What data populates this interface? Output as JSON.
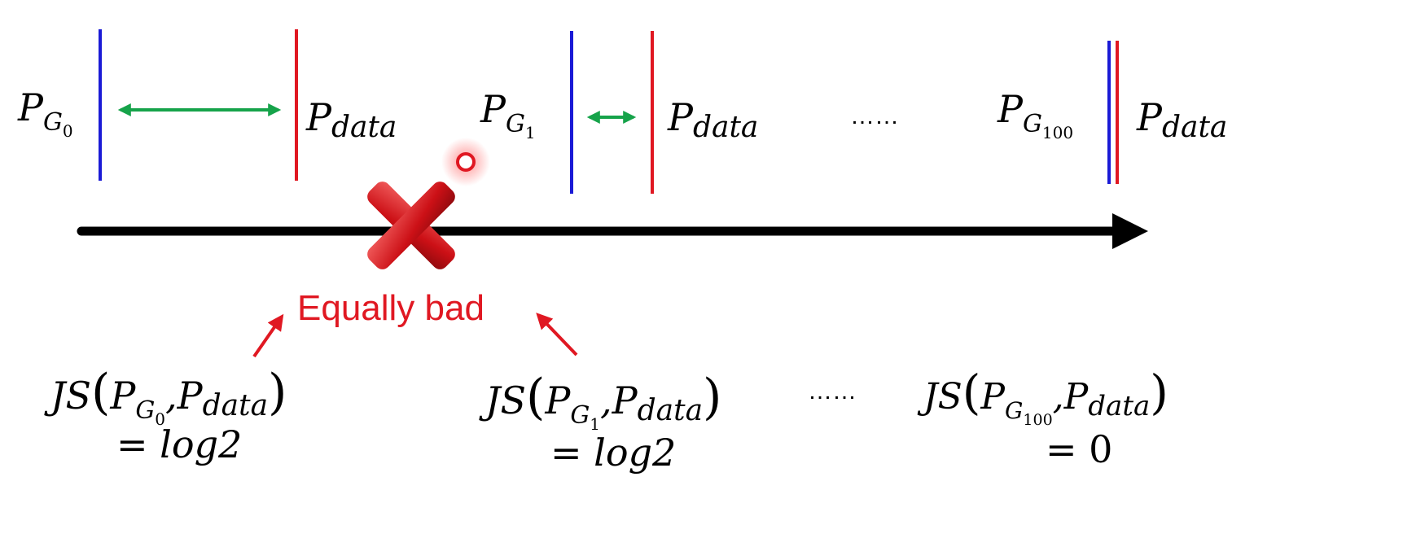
{
  "colors": {
    "generator": "#1a1ad6",
    "data": "#e01822",
    "distance": "#16a34a",
    "axis": "#000000",
    "annotation": "#e01822"
  },
  "icons": {
    "cross": "red-cross-mark-icon",
    "pointer": "laser-pointer-icon"
  },
  "stages": [
    {
      "gen_base": "P",
      "gen_sub": "G",
      "gen_subsub": "0",
      "data_base": "P",
      "data_sub": "data",
      "js": {
        "fn": "JS",
        "lparen": "(",
        "arg1_base": "P",
        "arg1_sub": "G",
        "arg1_subsub": "0",
        "comma": ",",
        "arg2_base": "P",
        "arg2_sub": "data",
        "rparen": ")",
        "result": "= log2"
      }
    },
    {
      "gen_base": "P",
      "gen_sub": "G",
      "gen_subsub": "1",
      "data_base": "P",
      "data_sub": "data",
      "js": {
        "fn": "JS",
        "lparen": "(",
        "arg1_base": "P",
        "arg1_sub": "G",
        "arg1_subsub": "1",
        "comma": ",",
        "arg2_base": "P",
        "arg2_sub": "data",
        "rparen": ")",
        "result": "= log2"
      }
    },
    {
      "gen_base": "P",
      "gen_sub": "G",
      "gen_subsub": "100",
      "data_base": "P",
      "data_sub": "data",
      "js": {
        "fn": "JS",
        "lparen": "(",
        "arg1_base": "P",
        "arg1_sub": "G",
        "arg1_subsub": "100",
        "comma": ",",
        "arg2_base": "P",
        "arg2_sub": "data",
        "rparen": ")",
        "result": "= 0"
      }
    }
  ],
  "ellipsis_top": "……",
  "ellipsis_bottom": "……",
  "annotation": "Equally bad"
}
